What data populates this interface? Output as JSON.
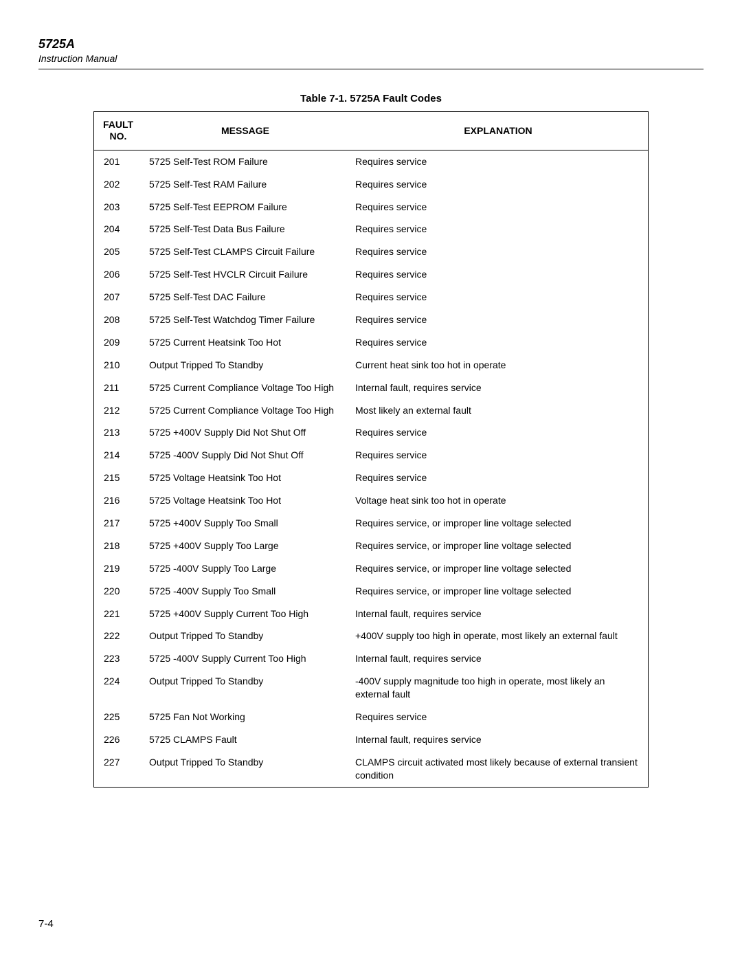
{
  "header": {
    "model": "5725A",
    "subtitle": "Instruction Manual"
  },
  "caption": "Table 7-1. 5725A Fault Codes",
  "columns": {
    "fault": "FAULT NO.",
    "message": "MESSAGE",
    "explanation": "EXPLANATION"
  },
  "rows": [
    {
      "fault": "201",
      "message": "5725 Self-Test ROM Failure",
      "explanation": "Requires service"
    },
    {
      "fault": "202",
      "message": "5725 Self-Test RAM Failure",
      "explanation": "Requires service"
    },
    {
      "fault": "203",
      "message": "5725 Self-Test EEPROM Failure",
      "explanation": "Requires service"
    },
    {
      "fault": "204",
      "message": "5725 Self-Test Data Bus Failure",
      "explanation": "Requires service"
    },
    {
      "fault": "205",
      "message": "5725 Self-Test CLAMPS Circuit Failure",
      "explanation": "Requires service"
    },
    {
      "fault": "206",
      "message": "5725 Self-Test HVCLR Circuit Failure",
      "explanation": "Requires service"
    },
    {
      "fault": "207",
      "message": "5725 Self-Test DAC Failure",
      "explanation": "Requires service"
    },
    {
      "fault": "208",
      "message": "5725 Self-Test Watchdog Timer Failure",
      "explanation": "Requires service"
    },
    {
      "fault": "209",
      "message": "5725 Current Heatsink Too Hot",
      "explanation": "Requires service"
    },
    {
      "fault": "210",
      "message": "Output Tripped To Standby",
      "explanation": "Current heat sink too hot in operate"
    },
    {
      "fault": "211",
      "message": "5725 Current Compliance Voltage Too High",
      "explanation": "Internal fault, requires service"
    },
    {
      "fault": "212",
      "message": "5725 Current Compliance Voltage Too High",
      "explanation": "Most likely an external fault"
    },
    {
      "fault": "213",
      "message": "5725 +400V Supply Did Not Shut Off",
      "explanation": "Requires service"
    },
    {
      "fault": "214",
      "message": "5725 -400V Supply Did Not Shut Off",
      "explanation": "Requires service"
    },
    {
      "fault": "215",
      "message": "5725 Voltage Heatsink Too Hot",
      "explanation": "Requires service"
    },
    {
      "fault": "216",
      "message": "5725 Voltage Heatsink Too Hot",
      "explanation": "Voltage heat sink too hot in operate"
    },
    {
      "fault": "217",
      "message": "5725 +400V Supply Too Small",
      "explanation": "Requires service, or improper line voltage selected"
    },
    {
      "fault": "218",
      "message": "5725 +400V Supply Too Large",
      "explanation": "Requires service, or improper line voltage selected"
    },
    {
      "fault": "219",
      "message": "5725 -400V Supply Too Large",
      "explanation": "Requires service, or improper line voltage selected"
    },
    {
      "fault": "220",
      "message": "5725 -400V Supply Too Small",
      "explanation": "Requires service, or improper line voltage selected"
    },
    {
      "fault": "221",
      "message": "5725 +400V Supply Current Too High",
      "explanation": "Internal fault, requires service"
    },
    {
      "fault": "222",
      "message": "Output Tripped To Standby",
      "explanation": "+400V supply too high in operate, most likely an external fault"
    },
    {
      "fault": "223",
      "message": "5725 -400V Supply Current Too High",
      "explanation": "Internal fault, requires service"
    },
    {
      "fault": "224",
      "message": "Output Tripped To Standby",
      "explanation": "-400V supply magnitude too high in operate, most likely an external fault"
    },
    {
      "fault": "225",
      "message": "5725 Fan Not Working",
      "explanation": "Requires service"
    },
    {
      "fault": "226",
      "message": "5725 CLAMPS Fault",
      "explanation": "Internal fault, requires service"
    },
    {
      "fault": "227",
      "message": "Output Tripped To Standby",
      "explanation": "CLAMPS circuit activated most likely because of external transient condition"
    }
  ],
  "page_number": "7-4"
}
